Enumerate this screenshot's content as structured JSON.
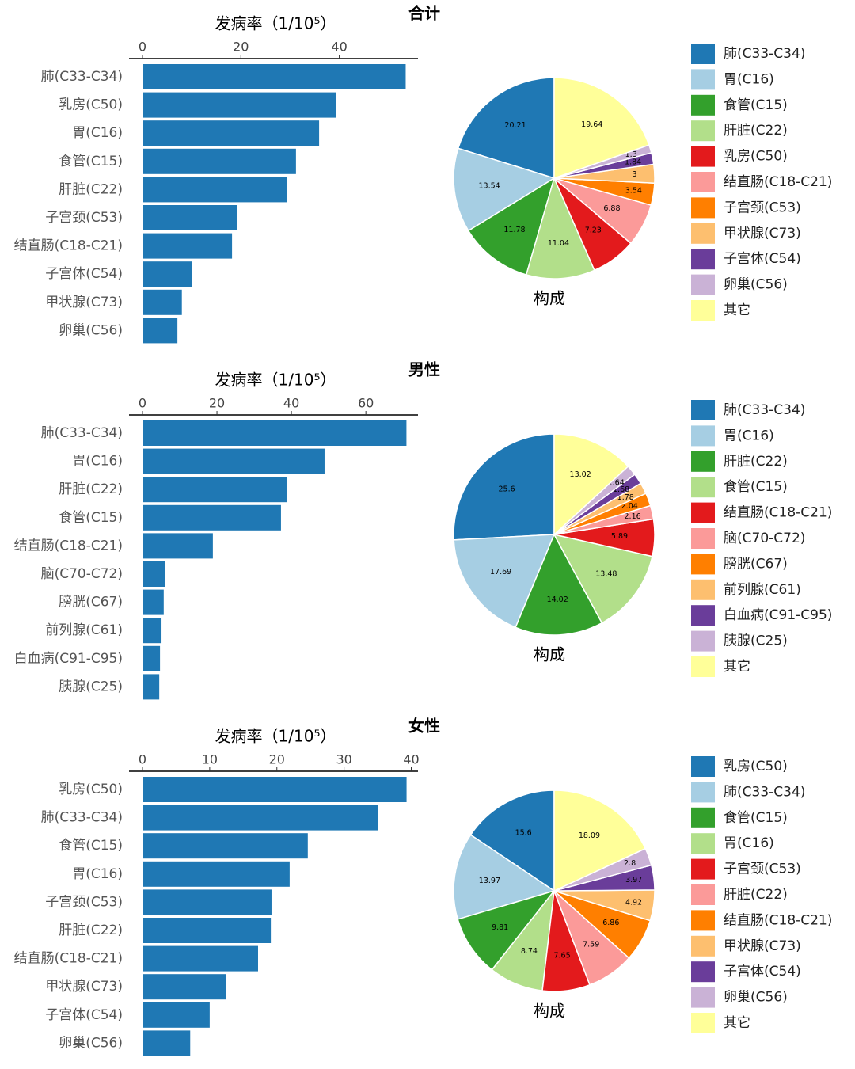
{
  "chart_data": [
    {
      "type": "bar",
      "title": "合计",
      "xlabel": "发病率（1/10⁵）",
      "categories": [
        "肺(C33-C34)",
        "乳房(C50)",
        "胃(C16)",
        "食管(C15)",
        "肝脏(C22)",
        "子宫颈(C53)",
        "结直肠(C18-C21)",
        "子宫体(C54)",
        "甲状腺(C73)",
        "卵巢(C56)"
      ],
      "values": [
        53.5,
        39.4,
        35.9,
        31.2,
        29.3,
        19.3,
        18.2,
        10.0,
        8.0,
        7.1
      ],
      "color": "#1f78b4",
      "xlim": [
        0,
        56
      ],
      "xticks": [
        0,
        20,
        40
      ]
    },
    {
      "type": "pie",
      "title": "构成",
      "categories": [
        "肺(C33-C34)",
        "胃(C16)",
        "食管(C15)",
        "肝脏(C22)",
        "乳房(C50)",
        "结直肠(C18-C21)",
        "子宫颈(C53)",
        "甲状腺(C73)",
        "子宫体(C54)",
        "卵巢(C56)",
        "其它"
      ],
      "values": [
        20.21,
        13.54,
        11.78,
        11.04,
        7.23,
        6.88,
        3.54,
        3,
        1.84,
        1.3,
        19.64
      ],
      "colors": [
        "#1f78b4",
        "#a6cee3",
        "#33a02c",
        "#b2df8a",
        "#e31a1c",
        "#fb9a99",
        "#ff7f00",
        "#fdbf6f",
        "#6a3d9a",
        "#cab2d6",
        "#ffff99"
      ]
    },
    {
      "type": "bar",
      "title": "男性",
      "xlabel": "发病率（1/10⁵）",
      "categories": [
        "肺(C33-C34)",
        "胃(C16)",
        "肝脏(C22)",
        "食管(C15)",
        "结直肠(C18-C21)",
        "脑(C70-C72)",
        "膀胱(C67)",
        "前列腺(C61)",
        "白血病(C91-C95)",
        "胰腺(C25)"
      ],
      "values": [
        70.9,
        48.9,
        38.7,
        37.2,
        18.9,
        6.0,
        5.7,
        4.9,
        4.7,
        4.5
      ],
      "color": "#1f78b4",
      "xlim": [
        0,
        74
      ],
      "xticks": [
        0,
        20,
        40,
        60
      ]
    },
    {
      "type": "pie",
      "title": "构成",
      "categories": [
        "肺(C33-C34)",
        "胃(C16)",
        "肝脏(C22)",
        "食管(C15)",
        "结直肠(C18-C21)",
        "脑(C70-C72)",
        "膀胱(C67)",
        "前列腺(C61)",
        "白血病(C91-C95)",
        "胰腺(C25)",
        "其它"
      ],
      "values": [
        25.6,
        17.69,
        14.02,
        13.48,
        5.89,
        2.16,
        2.04,
        1.78,
        1.68,
        1.64,
        13.02
      ],
      "colors": [
        "#1f78b4",
        "#a6cee3",
        "#33a02c",
        "#b2df8a",
        "#e31a1c",
        "#fb9a99",
        "#ff7f00",
        "#fdbf6f",
        "#6a3d9a",
        "#cab2d6",
        "#ffff99"
      ]
    },
    {
      "type": "bar",
      "title": "女性",
      "xlabel": "发病率（1/10⁵）",
      "categories": [
        "乳房(C50)",
        "肺(C33-C34)",
        "食管(C15)",
        "胃(C16)",
        "子宫颈(C53)",
        "肝脏(C22)",
        "结直肠(C18-C21)",
        "甲状腺(C73)",
        "子宫体(C54)",
        "卵巢(C56)"
      ],
      "values": [
        39.3,
        35.1,
        24.6,
        21.9,
        19.2,
        19.1,
        17.2,
        12.4,
        10.0,
        7.1
      ],
      "color": "#1f78b4",
      "xlim": [
        0,
        41
      ],
      "xticks": [
        0,
        10,
        20,
        30,
        40
      ]
    },
    {
      "type": "pie",
      "title": "构成",
      "categories": [
        "乳房(C50)",
        "肺(C33-C34)",
        "食管(C15)",
        "胃(C16)",
        "子宫颈(C53)",
        "肝脏(C22)",
        "结直肠(C18-C21)",
        "甲状腺(C73)",
        "子宫体(C54)",
        "卵巢(C56)",
        "其它"
      ],
      "values": [
        15.6,
        13.97,
        9.81,
        8.74,
        7.65,
        7.59,
        6.86,
        4.92,
        3.97,
        2.8,
        18.09
      ],
      "colors": [
        "#1f78b4",
        "#a6cee3",
        "#33a02c",
        "#b2df8a",
        "#e31a1c",
        "#fb9a99",
        "#ff7f00",
        "#fdbf6f",
        "#6a3d9a",
        "#cab2d6",
        "#ffff99"
      ]
    }
  ]
}
